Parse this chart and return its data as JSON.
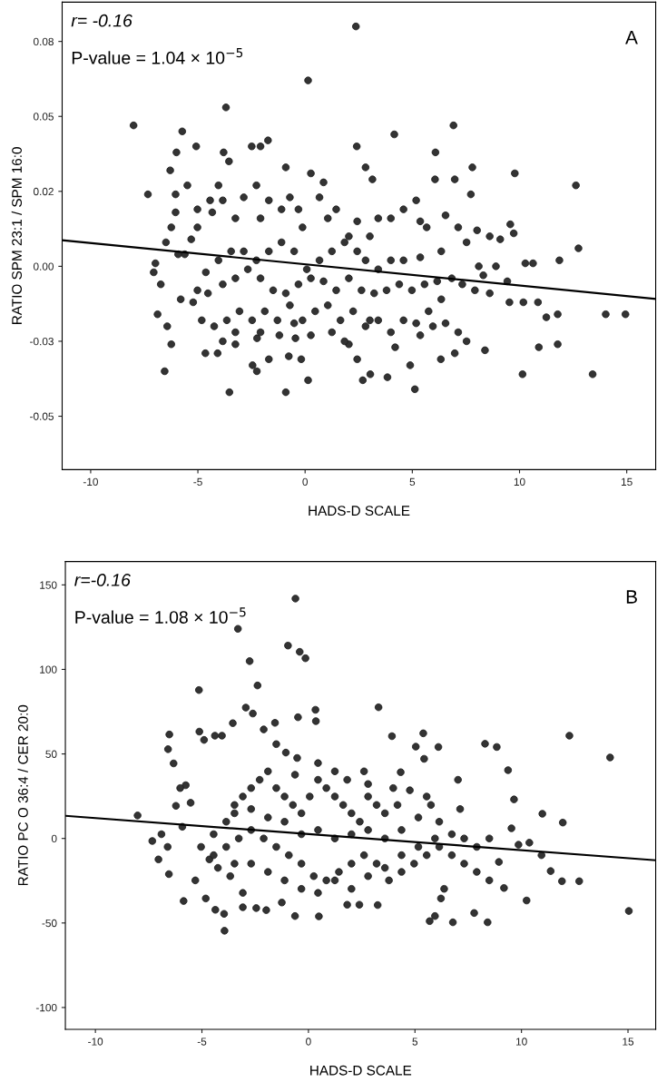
{
  "chart_data": [
    {
      "type": "scatter",
      "xlabel": "HADS-D SCALE",
      "ylabel": "RATIO SPM 23:1 / SPM 16:0",
      "annotations": [
        "r= -0.16",
        "P-value = 1.04 × 10$^{−5}$",
        "A"
      ],
      "xlim": [
        -11.33,
        16.35
      ],
      "ylim": [
        -0.0678,
        0.0881
      ],
      "xticks": [
        -10,
        -5,
        0,
        5,
        10,
        15
      ],
      "yticks": [
        {
          "value": -0.05,
          "label": "-0.05"
        },
        {
          "value": -0.025,
          "label": "-0.03"
        },
        {
          "value": 0,
          "label": "0.00"
        },
        {
          "value": 0.025,
          "label": "0.02"
        },
        {
          "value": 0.05,
          "label": "0.05"
        },
        {
          "value": 0.075,
          "label": "0.08"
        }
      ],
      "grid": false,
      "legend": false,
      "marker": "circle",
      "series": [
        {
          "color": "#333333",
          "x": [
            -8.0,
            -7.33,
            2.37,
            0.14,
            -3.69,
            -5.73,
            -5.08,
            -6.0,
            -6.29,
            -1.73,
            -2.49,
            -2.08,
            -3.8,
            -3.55,
            -0.9,
            0.27,
            0.86,
            2.41,
            2.82,
            3.14,
            6.92,
            4.16,
            6.08,
            7.8,
            9.78,
            12.63,
            12.75,
            6.06,
            6.98,
            7.73,
            9.57,
            9.73,
            9.1,
            8.61,
            8.02,
            11.86,
            10.27,
            10.63,
            8.9,
            8.1,
            9.43,
            8.31,
            8.61,
            9.53,
            10.18,
            10.86,
            11.25,
            11.78,
            14.02,
            14.94,
            13.41,
            10.14,
            10.9,
            11.78,
            8.39,
            6.98,
            6.33,
            5.12,
            4.9,
            3.84,
            3.04,
            2.69,
            2.43,
            2.04,
            0.14,
            -0.9,
            -3.53,
            -4.65,
            -4.08,
            -6.55,
            -6.24,
            -6.88,
            -6.43,
            -0.76,
            -0.18,
            -2.25,
            -2.45,
            -2.24,
            -1.69,
            -1.2,
            -0.45,
            -3.25,
            -3.84,
            -4.82,
            -5.22,
            -5.8,
            -6.73,
            -6.98,
            -7.06,
            -6.49,
            -6.24,
            -6.04,
            -5.49,
            -6.04,
            -5.02,
            -5.02,
            -5.31,
            -5.61,
            -5.92,
            -4.43,
            -4.33,
            -4.04,
            -3.84,
            -3.25,
            -2.86,
            -2.27,
            -2.08,
            -1.69,
            -1.1,
            -0.71,
            -0.31,
            -0.12,
            0.67,
            1.06,
            1.45,
            2.04,
            2.43,
            3.02,
            3.41,
            4.0,
            4.59,
            5.18,
            5.37,
            5.67,
            6.55,
            7.14,
            7.53,
            6.35,
            5.37,
            4.59,
            4.0,
            3.41,
            2.82,
            2.43,
            1.84,
            1.25,
            0.67,
            0.08,
            -0.51,
            -1.1,
            -1.69,
            -2.27,
            -2.86,
            -3.45,
            -4.04,
            -4.63,
            -5.02,
            -4.53,
            -3.84,
            -3.25,
            -2.67,
            -2.08,
            -1.49,
            -0.9,
            -0.31,
            0.27,
            0.86,
            1.45,
            2.04,
            2.63,
            3.22,
            3.8,
            4.39,
            4.98,
            5.57,
            6.16,
            6.84,
            7.33,
            7.92,
            6.35,
            5.76,
            5.18,
            4.59,
            4.0,
            3.41,
            2.82,
            2.24,
            1.65,
            1.06,
            0.47,
            -0.12,
            -0.71,
            -1.29,
            -1.88,
            -2.47,
            -3.06,
            -3.65,
            -4.24,
            -3.25,
            -2.08,
            -0.51,
            0.27,
            1.25,
            1.84,
            3.02,
            4.2,
            5.37,
            5.96,
            6.55,
            7.14,
            7.53
          ],
          "values": [
            0.047,
            0.024,
            0.08,
            0.062,
            0.053,
            0.045,
            0.04,
            0.038,
            0.032,
            0.042,
            0.04,
            0.04,
            0.038,
            0.035,
            0.033,
            0.031,
            0.028,
            0.04,
            0.033,
            0.029,
            0.047,
            0.044,
            0.038,
            0.033,
            0.031,
            0.027,
            0.006,
            0.029,
            0.029,
            0.024,
            0.014,
            0.011,
            0.009,
            0.01,
            0.012,
            0.002,
            0.001,
            0.001,
            0.0,
            0.0,
            -0.005,
            -0.003,
            -0.009,
            -0.012,
            -0.012,
            -0.012,
            -0.017,
            -0.016,
            -0.016,
            -0.016,
            -0.036,
            -0.036,
            -0.027,
            -0.026,
            -0.028,
            -0.029,
            -0.031,
            -0.041,
            -0.033,
            -0.037,
            -0.036,
            -0.038,
            -0.031,
            -0.026,
            -0.038,
            -0.042,
            -0.042,
            -0.029,
            -0.029,
            -0.035,
            -0.026,
            -0.016,
            -0.02,
            -0.03,
            -0.031,
            -0.035,
            -0.033,
            -0.024,
            -0.031,
            -0.023,
            -0.024,
            -0.026,
            -0.025,
            -0.018,
            -0.012,
            -0.011,
            -0.006,
            0.001,
            -0.002,
            0.008,
            0.013,
            0.018,
            0.027,
            0.024,
            0.019,
            0.013,
            0.009,
            0.004,
            0.004,
            0.022,
            0.018,
            0.027,
            0.022,
            0.016,
            0.023,
            0.027,
            0.016,
            0.022,
            0.019,
            0.023,
            0.019,
            0.013,
            0.023,
            0.016,
            0.019,
            0.01,
            0.015,
            0.01,
            0.016,
            0.016,
            0.019,
            0.022,
            0.015,
            0.013,
            0.017,
            0.013,
            0.008,
            0.005,
            0.003,
            0.002,
            0.002,
            -0.001,
            0.002,
            0.005,
            0.008,
            0.005,
            0.002,
            -0.001,
            0.005,
            0.008,
            0.005,
            0.002,
            0.005,
            0.005,
            0.002,
            -0.002,
            -0.008,
            -0.009,
            -0.006,
            -0.004,
            -0.001,
            -0.004,
            -0.008,
            -0.009,
            -0.006,
            -0.004,
            -0.005,
            -0.008,
            -0.004,
            -0.008,
            -0.009,
            -0.008,
            -0.006,
            -0.008,
            -0.006,
            -0.005,
            -0.004,
            -0.006,
            -0.008,
            -0.011,
            -0.015,
            -0.019,
            -0.018,
            -0.022,
            -0.018,
            -0.02,
            -0.015,
            -0.018,
            -0.013,
            -0.015,
            -0.018,
            -0.013,
            -0.018,
            -0.015,
            -0.018,
            -0.015,
            -0.018,
            -0.02,
            -0.022,
            -0.022,
            -0.019,
            -0.023,
            -0.022,
            -0.025,
            -0.018,
            -0.027,
            -0.023,
            -0.02,
            -0.019,
            -0.022,
            -0.025
          ]
        },
        {
          "type": "line",
          "color": "#000000",
          "marker": "none",
          "x": [
            -11.33,
            16.35
          ],
          "values": [
            0.0087,
            -0.0109
          ]
        }
      ]
    },
    {
      "type": "scatter",
      "xlabel": "HADS-D SCALE",
      "ylabel": "RATIO PC O 36:4 / CER 20:0",
      "annotations": [
        "r=-0.16",
        "P-value = 1.08 × 10$^{−5}$",
        "B"
      ],
      "xlim": [
        -11.41,
        16.3
      ],
      "ylim": [
        -112.9,
        163.8
      ],
      "xticks": [
        -10,
        -5,
        0,
        5,
        10,
        15
      ],
      "yticks": [
        -100,
        -50,
        0,
        50,
        100,
        150
      ],
      "grid": false,
      "legend": false,
      "marker": "circle",
      "series": [
        {
          "color": "#333333",
          "x": [
            -8.02,
            -7.33,
            -7.04,
            -6.9,
            -6.53,
            -6.59,
            -6.33,
            -5.76,
            -5.53,
            -6.02,
            -6.22,
            -5.92,
            -6.61,
            -6.55,
            -5.86,
            -5.31,
            -4.82,
            -4.37,
            -3.94,
            -3.96,
            -3.08,
            -5.14,
            -5.12,
            -4.9,
            -4.39,
            -4.06,
            -3.55,
            -2.76,
            -3.31,
            -2.39,
            -2.94,
            -2.61,
            -2.1,
            -1.57,
            -0.61,
            -0.96,
            -0.41,
            -0.14,
            0.33,
            0.35,
            -0.49,
            -0.63,
            -1.06,
            -0.53,
            -1.51,
            3.29,
            3.92,
            4.33,
            5.04,
            5.39,
            5.43,
            6.1,
            7.02,
            8.29,
            8.84,
            9.37,
            9.65,
            10.98,
            11.94,
            12.25,
            14.16,
            12.71,
            15.04,
            10.24,
            11.9,
            11.37,
            10.94,
            10.37,
            9.86,
            9.53,
            8.94,
            9.18,
            8.41,
            7.78,
            6.78,
            5.94,
            5.69,
            6.22,
            6.37,
            3.25,
            2.39,
            1.82,
            0.49,
            -0.63,
            -1.25,
            -1.98,
            -2.45,
            -3.08,
            -3.67,
            -4.25,
            -4.65,
            -5.04,
            -4.45,
            -3.86,
            -3.47,
            -3.08,
            -2.69,
            -2.29,
            -1.9,
            -1.51,
            -1.12,
            -0.73,
            -0.33,
            0.06,
            0.45,
            0.84,
            1.24,
            1.63,
            2.02,
            2.41,
            2.8,
            3.2,
            3.59,
            4.18,
            4.76,
            5.16,
            5.75,
            6.14,
            6.73,
            7.31,
            7.9,
            8.49,
            8.49,
            7.9,
            7.31,
            6.73,
            6.14,
            5.55,
            4.96,
            4.37,
            3.78,
            3.2,
            2.61,
            2.02,
            1.43,
            0.84,
            0.25,
            -0.33,
            -0.92,
            -1.51,
            -2.1,
            -2.69,
            -3.27,
            -3.86,
            -4.45,
            -3.47,
            -2.69,
            -1.9,
            -1.12,
            -0.33,
            0.45,
            1.24,
            2.02,
            2.8,
            3.59,
            4.37,
            5.16,
            5.94,
            4.37,
            3.59,
            2.8,
            2.02,
            1.24,
            0.45,
            -0.33,
            -1.12,
            -1.9,
            -2.69,
            -3.47,
            0.45,
            1.24,
            1.82,
            2.61,
            2.8,
            3.98,
            5.55,
            7.12
          ],
          "values": [
            13.6,
            -1.5,
            -12.4,
            2.5,
            61.5,
            52.8,
            44.4,
            31.5,
            21.1,
            29.8,
            19.3,
            6.9,
            -5.0,
            -21.1,
            -37.0,
            -24.8,
            -35.5,
            -42.2,
            -54.6,
            -44.6,
            -40.7,
            87.8,
            63.2,
            58.3,
            60.8,
            60.8,
            68.2,
            104.9,
            124.0,
            90.5,
            77.4,
            73.9,
            64.5,
            68.4,
            141.9,
            114.1,
            110.4,
            106.6,
            76.1,
            69.4,
            71.7,
            37.7,
            50.8,
            47.6,
            55.8,
            77.6,
            60.5,
            39.2,
            54.3,
            62.2,
            47.1,
            54.1,
            34.7,
            56.0,
            54.1,
            40.4,
            23.1,
            14.6,
            9.4,
            60.8,
            47.9,
            -25.3,
            -42.9,
            -36.7,
            -25.3,
            -19.3,
            -9.9,
            -2.5,
            -3.7,
            6.0,
            -13.9,
            -29.3,
            -49.6,
            -44.1,
            -49.6,
            -45.9,
            -48.9,
            -35.5,
            -29.8,
            -39.4,
            -39.2,
            -39.2,
            -46.1,
            -45.9,
            -37.9,
            -42.4,
            -41.2,
            -32.2,
            -22.3,
            -17.4,
            -12.4,
            -5.0,
            2.5,
            9.9,
            19.8,
            24.8,
            29.8,
            34.7,
            39.7,
            29.8,
            24.8,
            19.8,
            14.9,
            24.8,
            34.7,
            29.8,
            24.8,
            19.8,
            14.9,
            9.9,
            24.8,
            19.8,
            14.9,
            19.8,
            28.5,
            12.4,
            19.8,
            9.9,
            2.5,
            0.0,
            -5.0,
            0.0,
            -24.8,
            -19.8,
            -14.9,
            -9.9,
            -5.0,
            -9.9,
            -14.9,
            -19.8,
            -24.8,
            -14.9,
            -9.9,
            -14.9,
            -19.8,
            -24.8,
            -22.3,
            -14.9,
            -9.9,
            -5.0,
            0.0,
            5.0,
            0.0,
            -5.0,
            -9.9,
            -14.9,
            -14.9,
            -19.8,
            -24.8,
            -29.8,
            -32.2,
            -24.8,
            -29.8,
            -22.3,
            -17.4,
            -9.9,
            -5.0,
            0.0,
            5.0,
            0.0,
            5.0,
            2.5,
            0.0,
            5.0,
            2.5,
            9.9,
            12.4,
            17.4,
            14.9,
            44.6,
            39.7,
            34.7,
            39.7,
            32.2,
            29.8,
            24.8,
            17.4
          ]
        },
        {
          "type": "line",
          "color": "#000000",
          "marker": "none",
          "x": [
            -11.41,
            16.3
          ],
          "values": [
            13.4,
            -12.9
          ]
        }
      ]
    }
  ]
}
